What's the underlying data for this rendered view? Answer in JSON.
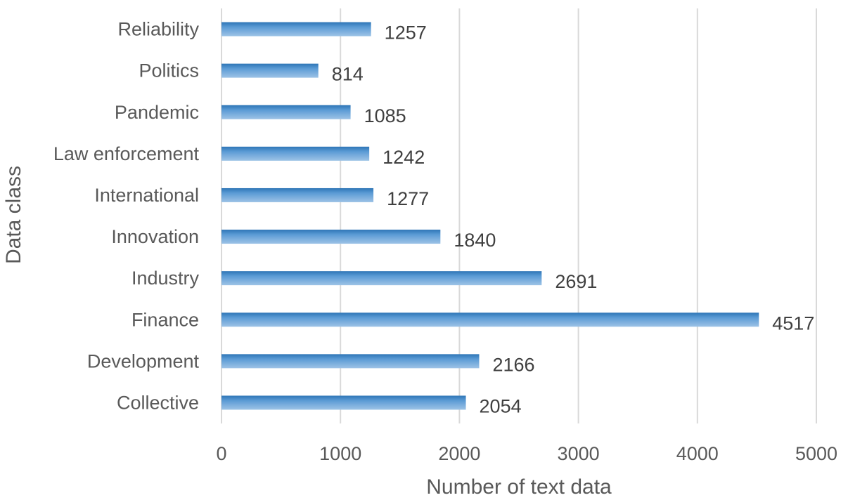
{
  "chart_data": {
    "type": "bar",
    "orientation": "horizontal",
    "categories": [
      "Collective",
      "Development",
      "Finance",
      "Industry",
      "Innovation",
      "International",
      "Law enforcement",
      "Pandemic",
      "Politics",
      "Reliability"
    ],
    "values": [
      2054,
      2166,
      4517,
      2691,
      1840,
      1277,
      1242,
      1085,
      814,
      1257
    ],
    "xlabel": "Number of text data",
    "ylabel": "Data class",
    "xlim": [
      0,
      5000
    ],
    "xticks": [
      0,
      1000,
      2000,
      3000,
      4000,
      5000
    ],
    "grid": "vertical",
    "legend": "none",
    "bar_color": "#5b9bd5",
    "bar_color_dark": "#2e75b6",
    "bar_color_light": "#9dc3e6"
  }
}
